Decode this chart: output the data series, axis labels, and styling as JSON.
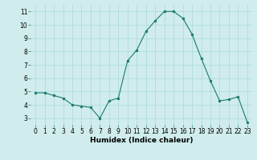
{
  "x": [
    0,
    1,
    2,
    3,
    4,
    5,
    6,
    7,
    8,
    9,
    10,
    11,
    12,
    13,
    14,
    15,
    16,
    17,
    18,
    19,
    20,
    21,
    22,
    23
  ],
  "y": [
    4.9,
    4.9,
    4.7,
    4.5,
    4.0,
    3.9,
    3.8,
    3.0,
    4.3,
    4.5,
    7.3,
    8.1,
    9.5,
    10.3,
    11.0,
    11.0,
    10.5,
    9.3,
    7.5,
    5.8,
    4.3,
    4.4,
    4.6,
    2.7
  ],
  "line_color": "#1a7a6e",
  "marker_color": "#1a7a6e",
  "bg_color": "#d0ecec",
  "grid_color": "#a8d8d8",
  "xlabel": "Humidex (Indice chaleur)",
  "ylim": [
    2.5,
    11.5
  ],
  "xlim": [
    -0.5,
    23.5
  ],
  "yticks": [
    3,
    4,
    5,
    6,
    7,
    8,
    9,
    10,
    11
  ],
  "xticks": [
    0,
    1,
    2,
    3,
    4,
    5,
    6,
    7,
    8,
    9,
    10,
    11,
    12,
    13,
    14,
    15,
    16,
    17,
    18,
    19,
    20,
    21,
    22,
    23
  ],
  "tick_fontsize": 5.5,
  "label_fontsize": 6.5
}
